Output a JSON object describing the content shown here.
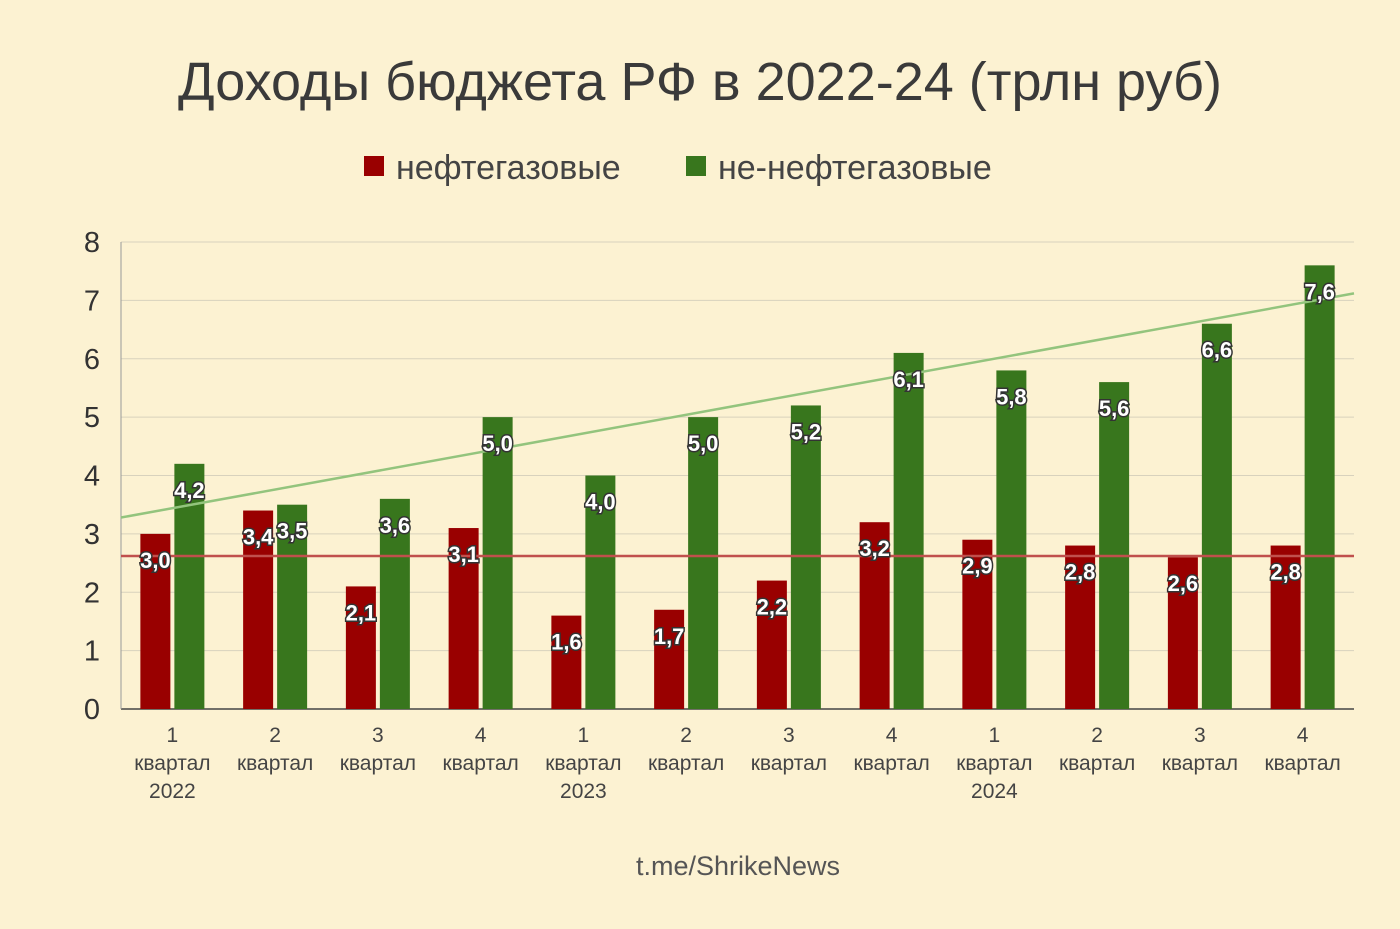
{
  "chart_data": {
    "type": "bar",
    "title": "Доходы бюджета РФ в 2022-24 (трлн руб)",
    "categories": [
      [
        "1",
        "квартал",
        "2022"
      ],
      [
        "2",
        "квартал"
      ],
      [
        "3",
        "квартал"
      ],
      [
        "4",
        "квартал"
      ],
      [
        "1",
        "квартал",
        "2023"
      ],
      [
        "2",
        "квартал"
      ],
      [
        "3",
        "квартал"
      ],
      [
        "4",
        "квартал"
      ],
      [
        "1",
        "квартал",
        "2024"
      ],
      [
        "2",
        "квартал"
      ],
      [
        "3",
        "квартал"
      ],
      [
        "4",
        "квартал"
      ]
    ],
    "series": [
      {
        "name": "нефтегазовые",
        "color": "#990000",
        "values": [
          3.0,
          3.4,
          2.1,
          3.1,
          1.6,
          1.7,
          2.2,
          3.2,
          2.9,
          2.8,
          2.6,
          2.8
        ],
        "labels": [
          "3,0",
          "3,4",
          "2,1",
          "3,1",
          "1,6",
          "1,7",
          "2,2",
          "3,2",
          "2,9",
          "2,8",
          "2,6",
          "2,8"
        ]
      },
      {
        "name": "не-нефтегазовые",
        "color": "#38761d",
        "values": [
          4.2,
          3.5,
          3.6,
          5.0,
          4.0,
          5.0,
          5.2,
          6.1,
          5.8,
          5.6,
          6.6,
          7.6
        ],
        "labels": [
          "4,2",
          "3,5",
          "3,6",
          "5,0",
          "4,0",
          "5,0",
          "5,2",
          "6,1",
          "5,8",
          "5,6",
          "6,6",
          "7,6"
        ]
      }
    ],
    "trendlines": [
      {
        "series": "нефтегазовые",
        "color": "#c0504d",
        "start": 2.62,
        "end": 2.62
      },
      {
        "series": "не-нефтегазовые",
        "color": "#93c47d",
        "start": 3.28,
        "end": 7.12
      }
    ],
    "yticks": [
      "0",
      "1",
      "2",
      "3",
      "4",
      "5",
      "6",
      "7",
      "8"
    ],
    "ylim": [
      0,
      8
    ],
    "grid": true,
    "legend_position": "top-center",
    "xlabel": "",
    "ylabel": ""
  },
  "credit": "t.me/ShrikeNews"
}
